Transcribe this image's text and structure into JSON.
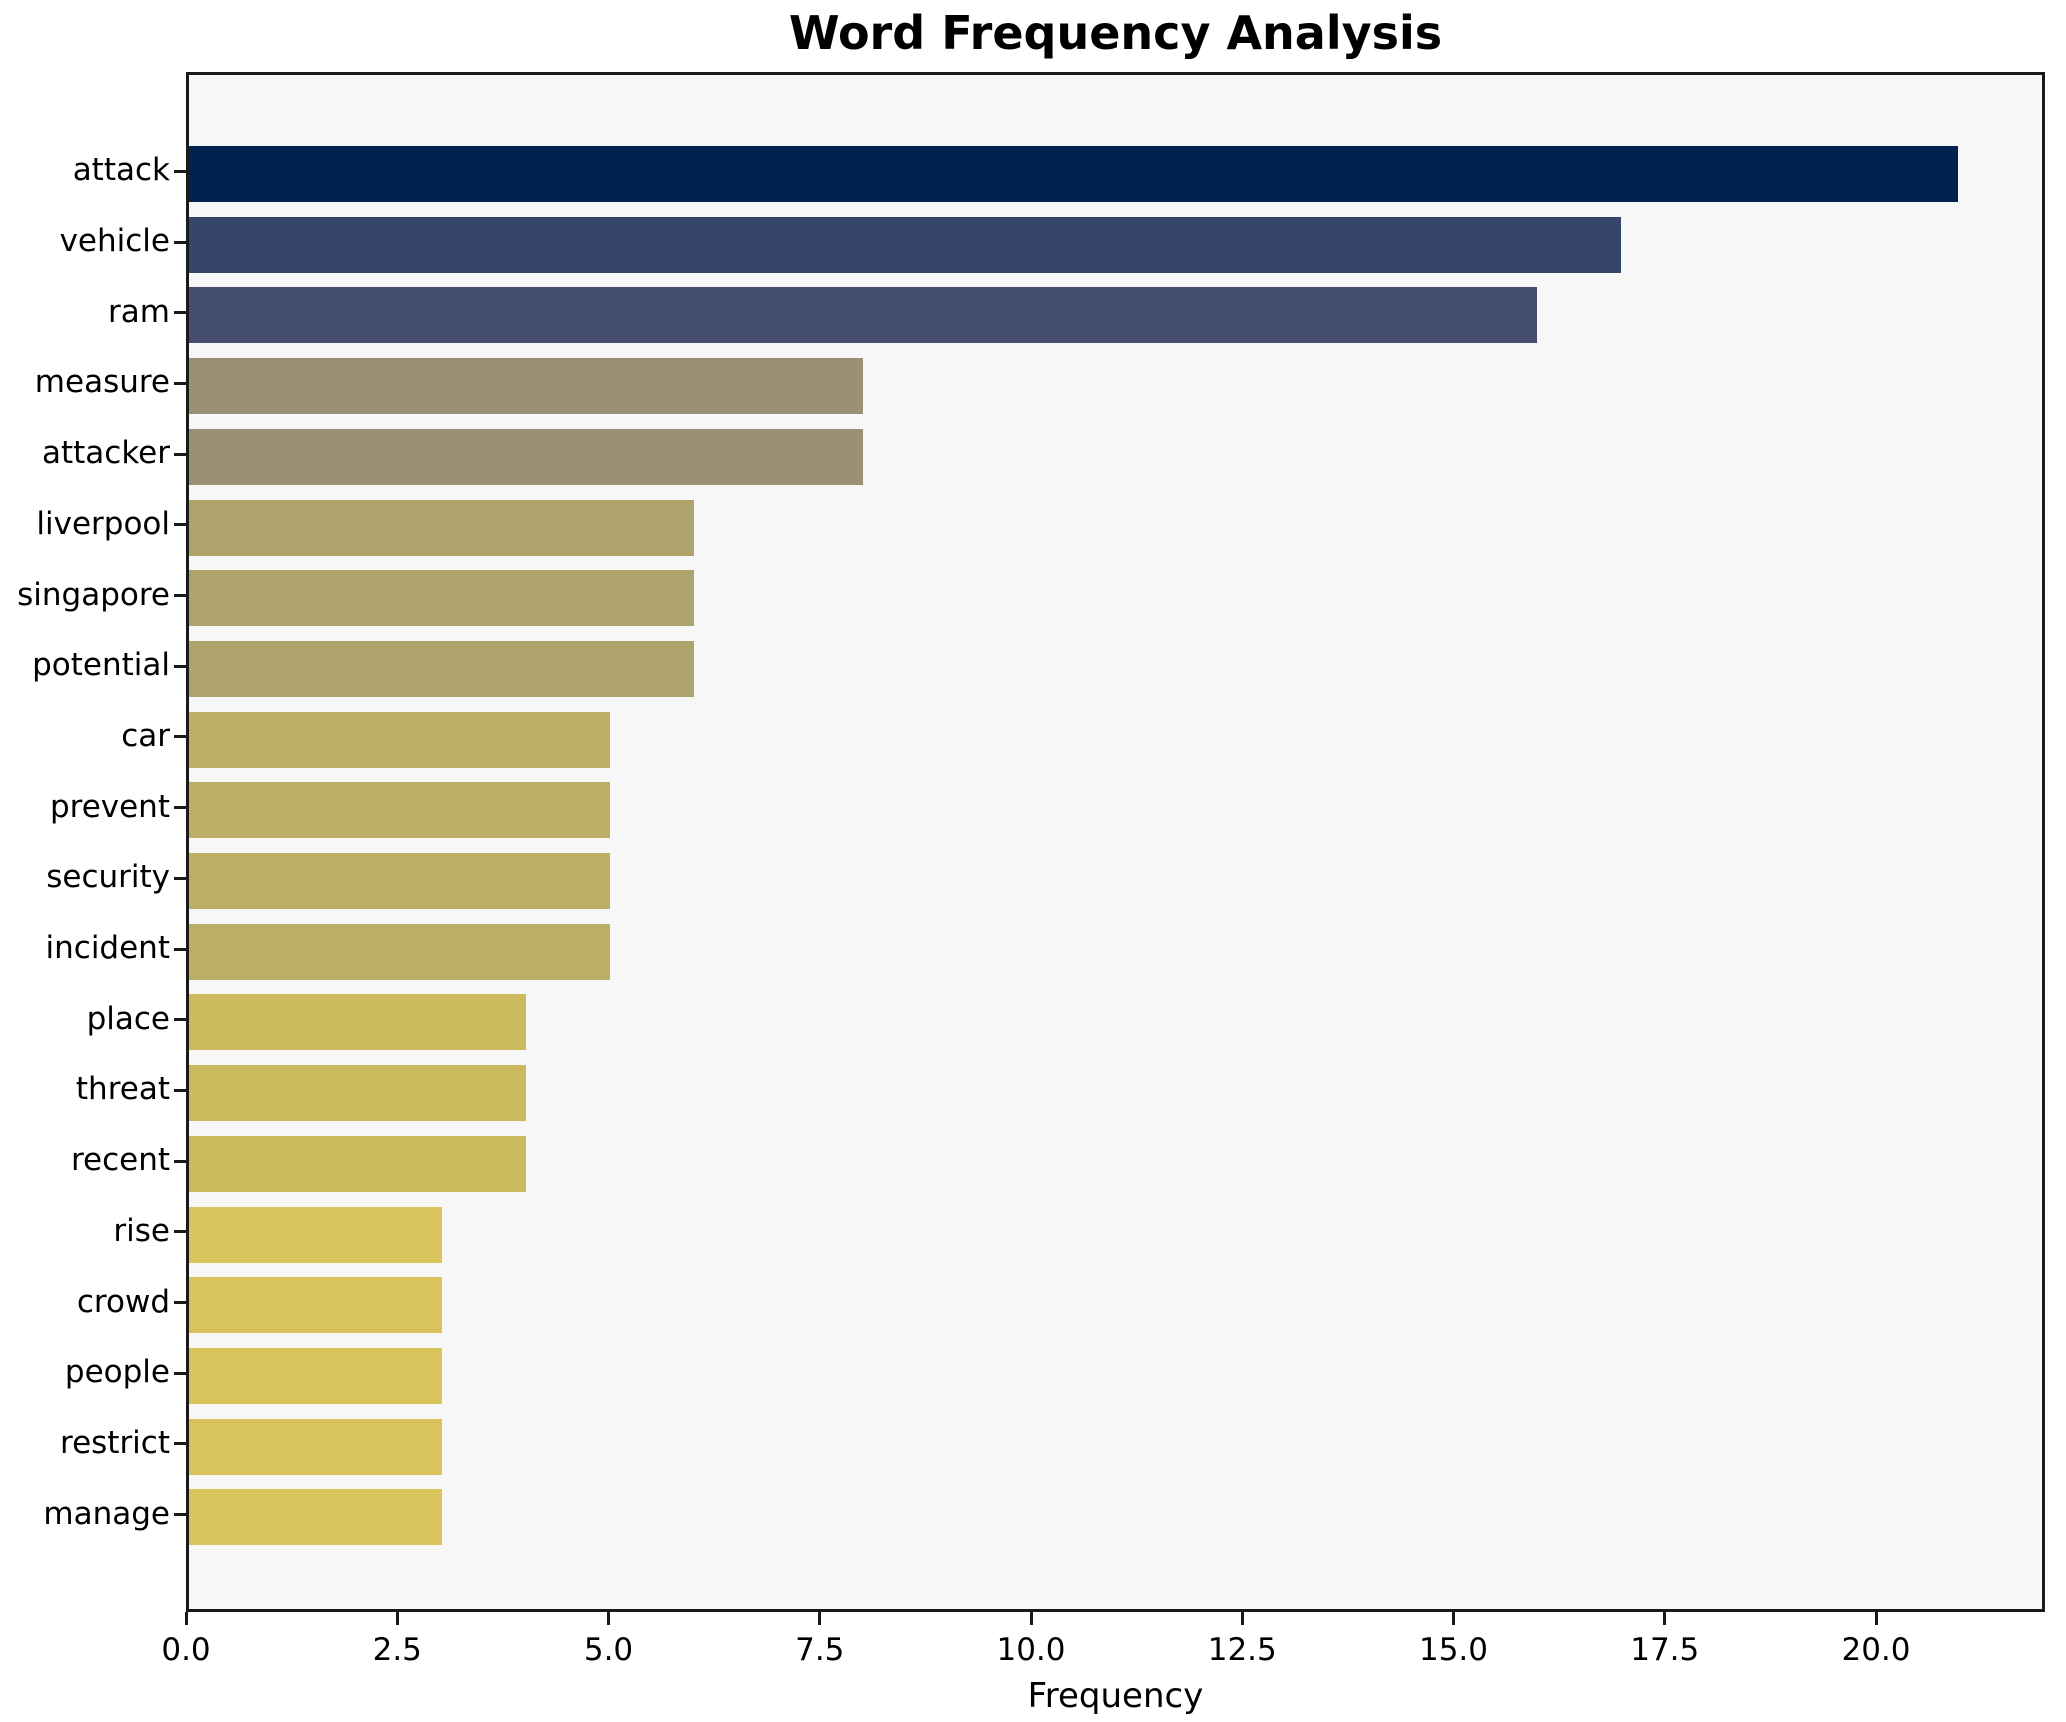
{
  "title": "Word Frequency Analysis",
  "chart_data": {
    "type": "bar",
    "orientation": "horizontal",
    "title": "Word Frequency Analysis",
    "xlabel": "Frequency",
    "ylabel": "",
    "categories": [
      "attack",
      "vehicle",
      "ram",
      "measure",
      "attacker",
      "liverpool",
      "singapore",
      "potential",
      "car",
      "prevent",
      "security",
      "incident",
      "place",
      "threat",
      "recent",
      "rise",
      "crowd",
      "people",
      "restrict",
      "manage"
    ],
    "values": [
      21,
      17,
      16,
      8,
      8,
      6,
      6,
      6,
      5,
      5,
      5,
      5,
      4,
      4,
      4,
      3,
      3,
      3,
      3,
      3
    ],
    "bar_colors": [
      "#00224e",
      "#35456b",
      "#454e70",
      "#999076",
      "#999076",
      "#aea46b",
      "#aea46b",
      "#aea46b",
      "#bcae64",
      "#bcae64",
      "#bcae64",
      "#bcae64",
      "#cbb95e",
      "#cbb95e",
      "#cbb95e",
      "#d9c45b",
      "#d9c45b",
      "#d9c45b",
      "#d9c45b",
      "#d9c45b"
    ],
    "colormap": "cividis-reversed-by-value",
    "xlim": [
      0,
      22.0
    ],
    "x_ticks": [
      0.0,
      2.5,
      5.0,
      7.5,
      10.0,
      12.5,
      15.0,
      17.5,
      20.0
    ],
    "x_tick_labels": [
      "0.0",
      "2.5",
      "5.0",
      "7.5",
      "10.0",
      "12.5",
      "15.0",
      "17.5",
      "20.0"
    ],
    "grid": false,
    "legend": "none",
    "plot_background": "#f7f7f7",
    "figure_background": "#ffffff",
    "axis_color": "#1a1a1a",
    "text_color": "#000000"
  }
}
